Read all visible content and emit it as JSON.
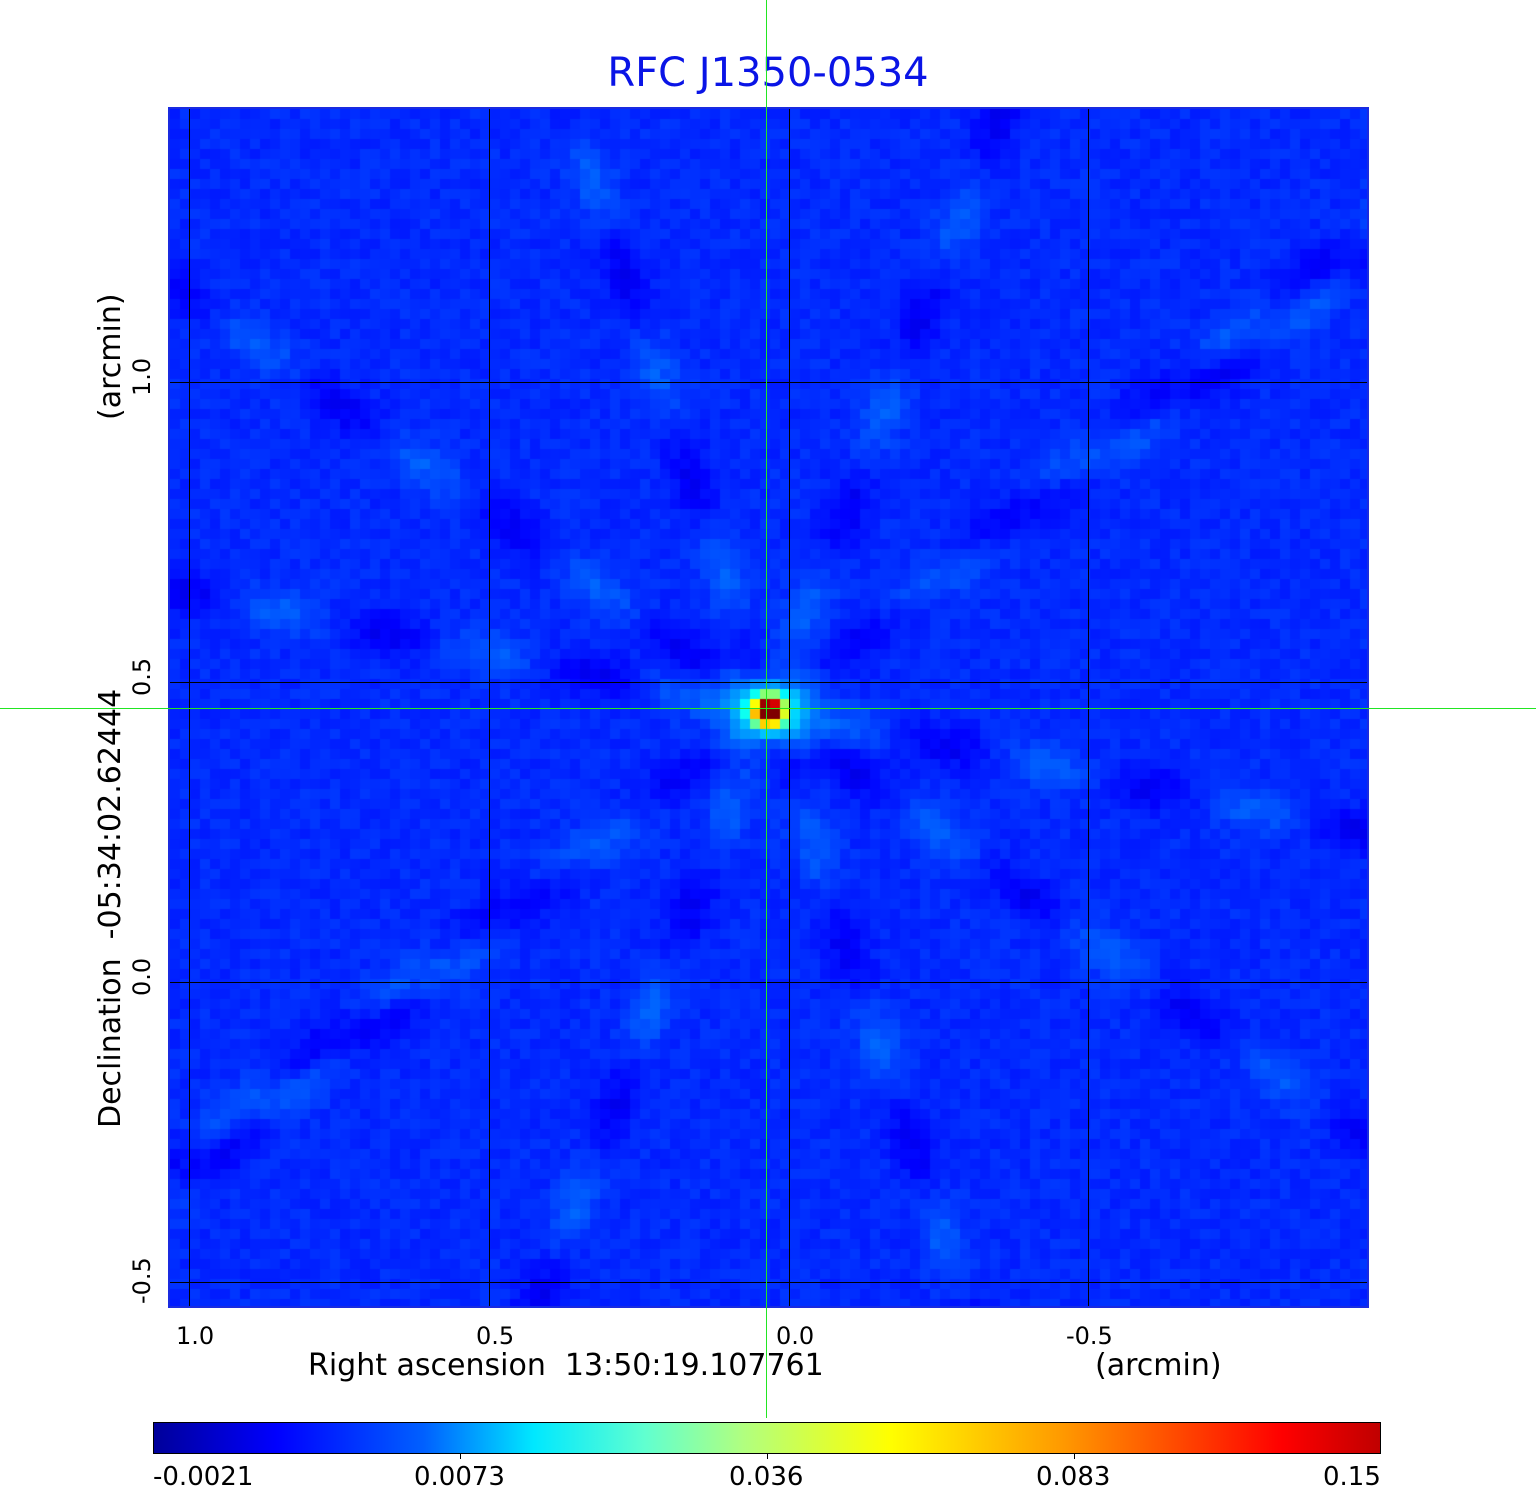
{
  "chart_data": {
    "type": "heatmap",
    "title": "RFC J1350-0534",
    "xlabel": "Right ascension  13:50:19.107761",
    "xunit": "(arcmin)",
    "ylabel": "Declination  -05:34:02.62444",
    "yunit": "(arcmin)",
    "x_ticks": [
      "1.0",
      "0.5",
      "0.0",
      "-0.5"
    ],
    "y_ticks": [
      "1.0",
      "0.5",
      "0.0",
      "-0.5"
    ],
    "xlim": [
      1.035,
      -0.965
    ],
    "ylim": [
      -0.54,
      1.46
    ],
    "grid": true,
    "colormap": "jet",
    "colorbar": {
      "ticks": [
        "-0.0021",
        "0.0073",
        "0.036",
        "0.083",
        "0.15"
      ],
      "range": [
        -0.0021,
        0.15
      ],
      "placement": "bottom"
    },
    "peak": {
      "ra_offset_arcmin": 0.037,
      "dec_offset_arcmin": 0.457,
      "value": 0.15
    },
    "crosshair_color": "#22e622",
    "title_color": "#0a14e6"
  }
}
